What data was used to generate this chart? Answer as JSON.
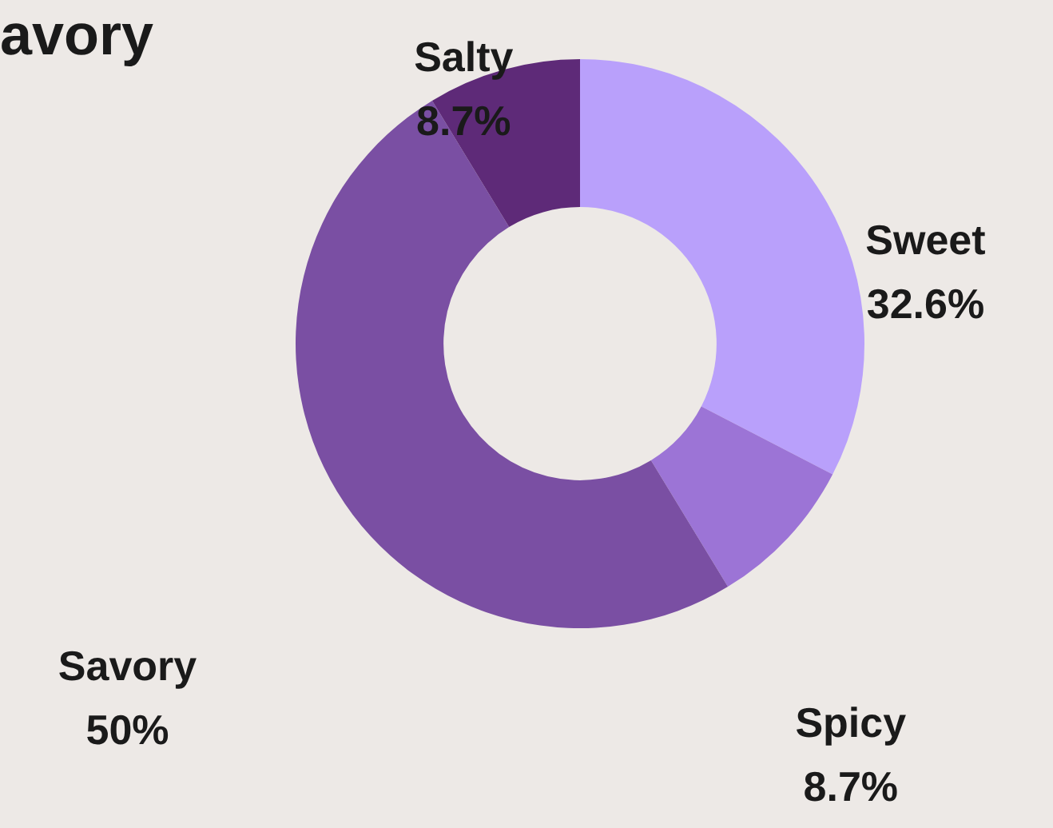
{
  "chart_data": {
    "type": "donut",
    "title": "avory",
    "categories": [
      "Sweet",
      "Spicy",
      "Savory",
      "Salty"
    ],
    "values": [
      32.6,
      8.7,
      50,
      8.7
    ],
    "value_labels": [
      "32.6%",
      "8.7%",
      "50%",
      "8.7%"
    ],
    "colors": [
      "#b9a0fb",
      "#9c74d6",
      "#7a4fa3",
      "#5e2a78"
    ],
    "legend": false
  }
}
